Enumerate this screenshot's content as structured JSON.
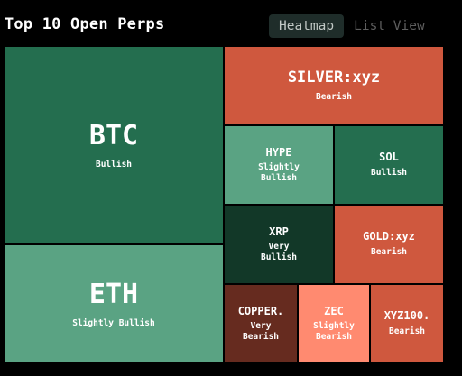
{
  "header": {
    "title": "Top 10 Open Perps",
    "tabs": [
      {
        "label": "Heatmap",
        "active": true
      },
      {
        "label": "List View",
        "active": false
      }
    ]
  },
  "sentiment_colors": {
    "Bullish": "#246e4f",
    "Slightly Bullish": "#5aa383",
    "Very Bullish": "#123828",
    "Bearish": "#cf583e",
    "Slightly Bearish": "#ff8a70",
    "Very Bearish": "#662b1f"
  },
  "tiles": [
    {
      "symbol": "BTC",
      "sentiment": "Bullish",
      "lines": [
        "Bullish"
      ]
    },
    {
      "symbol": "ETH",
      "sentiment": "Slightly Bullish",
      "lines": [
        "Slightly Bullish"
      ]
    },
    {
      "symbol": "SILVER:xyz",
      "sentiment": "Bearish",
      "lines": [
        "Bearish"
      ]
    },
    {
      "symbol": "HYPE",
      "sentiment": "Slightly Bullish",
      "lines": [
        "Slightly",
        "Bullish"
      ]
    },
    {
      "symbol": "SOL",
      "sentiment": "Bullish",
      "lines": [
        "Bullish"
      ]
    },
    {
      "symbol": "XRP",
      "sentiment": "Very Bullish",
      "lines": [
        "Very",
        "Bullish"
      ]
    },
    {
      "symbol": "GOLD:xyz",
      "sentiment": "Bearish",
      "lines": [
        "Bearish"
      ]
    },
    {
      "symbol": "COPPER.",
      "sentiment": "Very Bearish",
      "lines": [
        "Very",
        "Bearish"
      ]
    },
    {
      "symbol": "ZEC",
      "sentiment": "Slightly Bearish",
      "lines": [
        "Slightly",
        "Bearish"
      ]
    },
    {
      "symbol": "XYZ100.",
      "sentiment": "Bearish",
      "lines": [
        "Bearish"
      ]
    }
  ]
}
